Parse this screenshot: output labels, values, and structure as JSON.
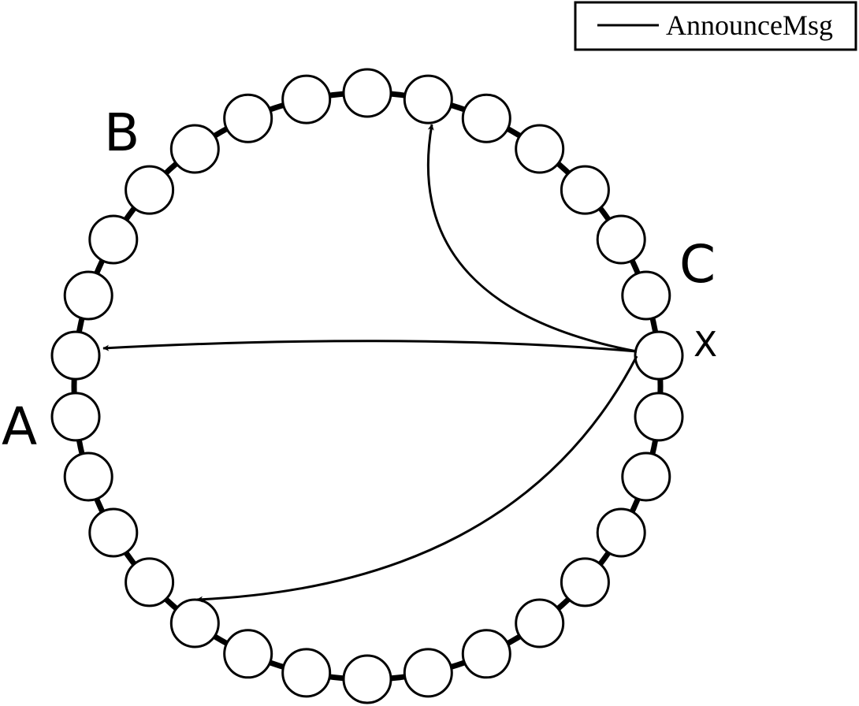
{
  "legend": {
    "label": "AnnounceMsg"
  },
  "ring": {
    "node_count": 30,
    "colors": {
      "ring_stroke": "#000000",
      "node_fill": "#ffffff",
      "node_stroke": "#000000",
      "arrow": "#000000"
    }
  },
  "labels": {
    "a": "A",
    "b": "B",
    "c": "C",
    "x": "X"
  },
  "messages": [
    {
      "from": "X",
      "to_position": "top (near B–C arc)"
    },
    {
      "from": "X",
      "to_position": "left (A)"
    },
    {
      "from": "X",
      "to_position": "bottom-left"
    }
  ]
}
